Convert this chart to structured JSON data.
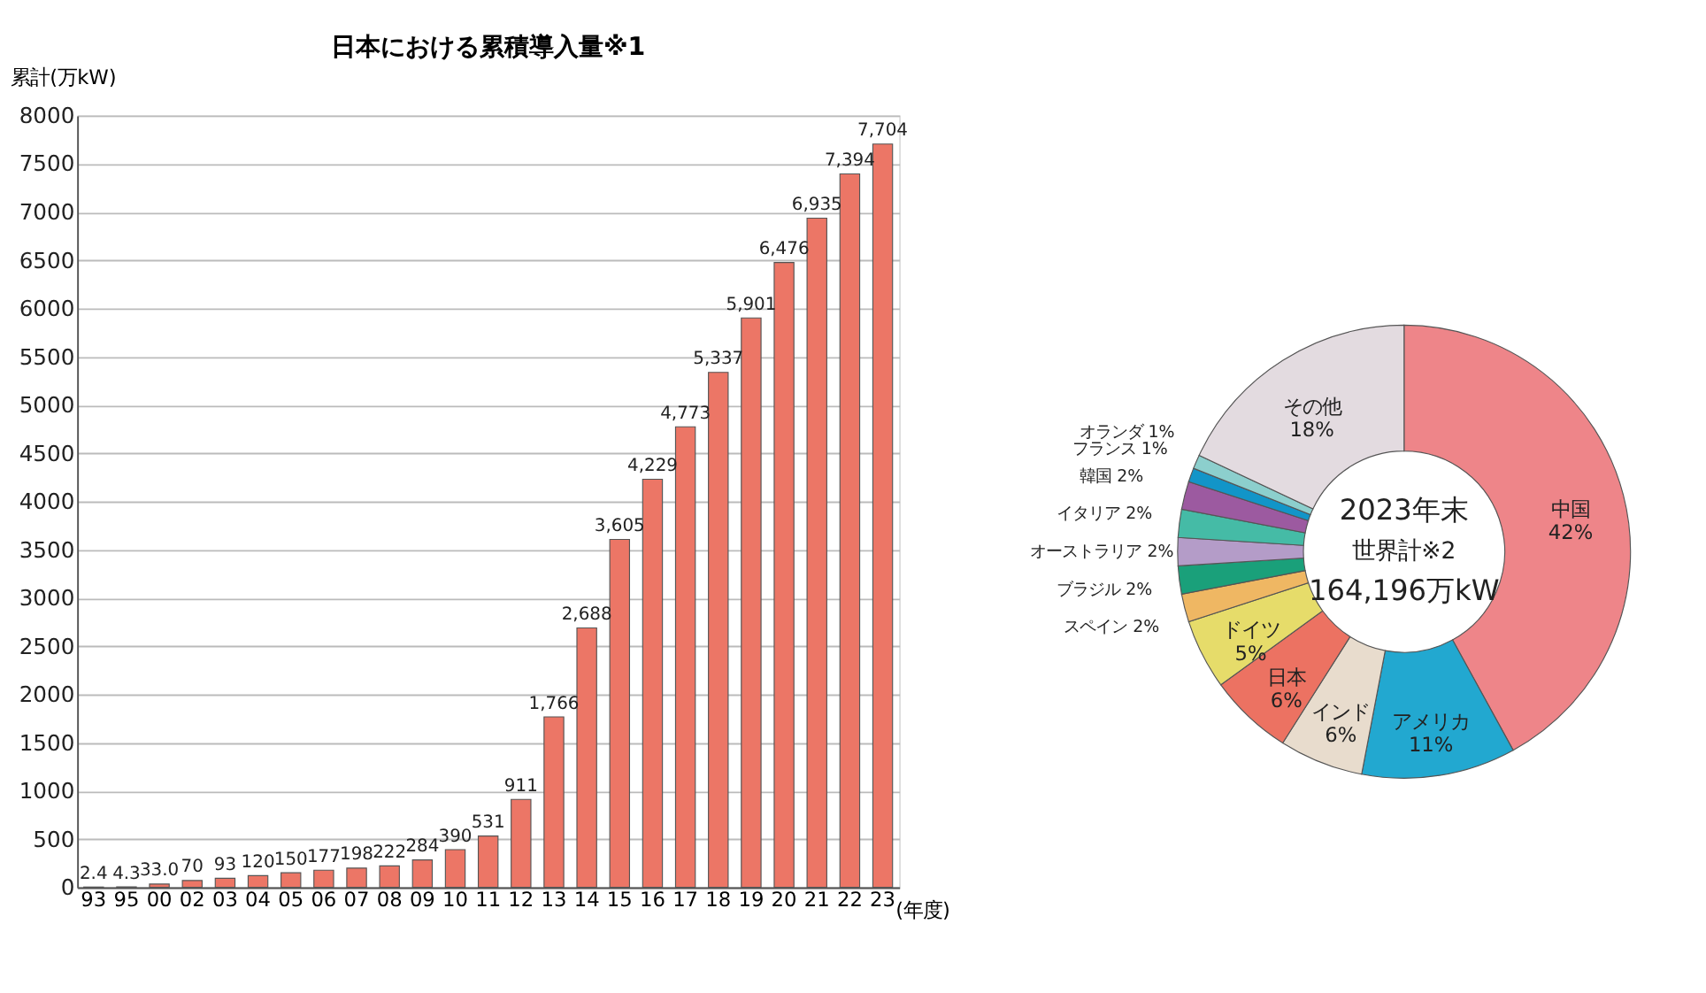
{
  "chart_data": [
    {
      "type": "bar",
      "title": "日本における累積導入量※1",
      "ylabel": "累計(万kW)",
      "xlabel": "(年度)",
      "categories": [
        "93",
        "95",
        "00",
        "02",
        "03",
        "04",
        "05",
        "06",
        "07",
        "08",
        "09",
        "10",
        "11",
        "12",
        "13",
        "14",
        "15",
        "16",
        "17",
        "18",
        "19",
        "20",
        "21",
        "22",
        "23"
      ],
      "values": [
        2.4,
        4.3,
        33.0,
        70,
        93,
        120,
        150,
        177,
        198,
        222,
        284,
        390,
        531,
        911,
        1766,
        2688,
        3605,
        4229,
        4773,
        5337,
        5901,
        6476,
        6935,
        7394,
        7704
      ],
      "value_labels": [
        "2.4",
        "4.3",
        "33.0",
        "70",
        "93",
        "120",
        "150",
        "177",
        "198",
        "222",
        "284",
        "390",
        "531",
        "911",
        "1,766",
        "2,688",
        "3,605",
        "4,229",
        "4,773",
        "5,337",
        "5,901",
        "6,476",
        "6,935",
        "7,394",
        "7,704"
      ],
      "color": "#ec7666",
      "ylim": [
        0,
        8000
      ],
      "yticks": [
        0,
        500,
        1000,
        1500,
        2000,
        2500,
        3000,
        3500,
        4000,
        4500,
        5000,
        5500,
        6000,
        6500,
        7000,
        7500,
        8000
      ],
      "grid": "y"
    },
    {
      "type": "donut",
      "categories": [
        "中国",
        "アメリカ",
        "インド",
        "日本",
        "ドイツ",
        "スペイン",
        "ブラジル",
        "オーストラリア",
        "イタリア",
        "韓国",
        "フランス",
        "オランダ",
        "その他"
      ],
      "values": [
        42,
        11,
        6,
        6,
        5,
        2,
        2,
        2,
        2,
        2,
        1,
        1,
        18
      ],
      "value_labels": [
        "42%",
        "11%",
        "6%",
        "6%",
        "5%",
        "2%",
        "2%",
        "2%",
        "2%",
        "2%",
        "1%",
        "1%",
        "18%"
      ],
      "colors": [
        "#ee8589",
        "#22a8d0",
        "#e8dccd",
        "#ec7262",
        "#e6dc6a",
        "#efb763",
        "#1aa07a",
        "#b49cc8",
        "#45bba6",
        "#9c5aa0",
        "#1295c8",
        "#8ccfcd",
        "#e3dbe0"
      ],
      "annotations": [
        "2023年末",
        "世界計※2",
        "164,196万kW"
      ]
    }
  ]
}
